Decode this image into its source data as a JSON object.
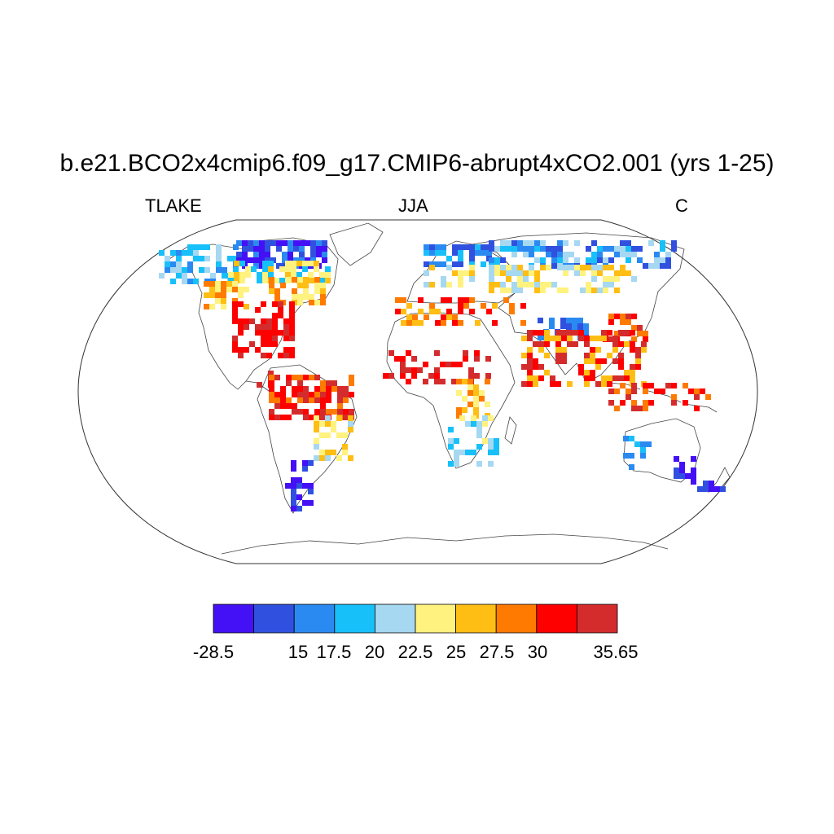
{
  "title": "b.e21.BCO2x4cmip6.f09_g17.CMIP6-abrupt4xCO2.001 (yrs 1-25)",
  "variable": "TLAKE",
  "season": "JJA",
  "units": "C",
  "projection": "Robinson",
  "colorbar": {
    "colors": [
      "#4410f5",
      "#3050e0",
      "#2a8af2",
      "#18c0fa",
      "#a6d8f2",
      "#fff27e",
      "#ffbe14",
      "#ff7a00",
      "#ff0000",
      "#d42c2c"
    ],
    "labels": [
      "-28.5",
      "15",
      "17.5",
      "20",
      "22.5",
      "25",
      "27.5",
      "30",
      "35.65"
    ]
  }
}
